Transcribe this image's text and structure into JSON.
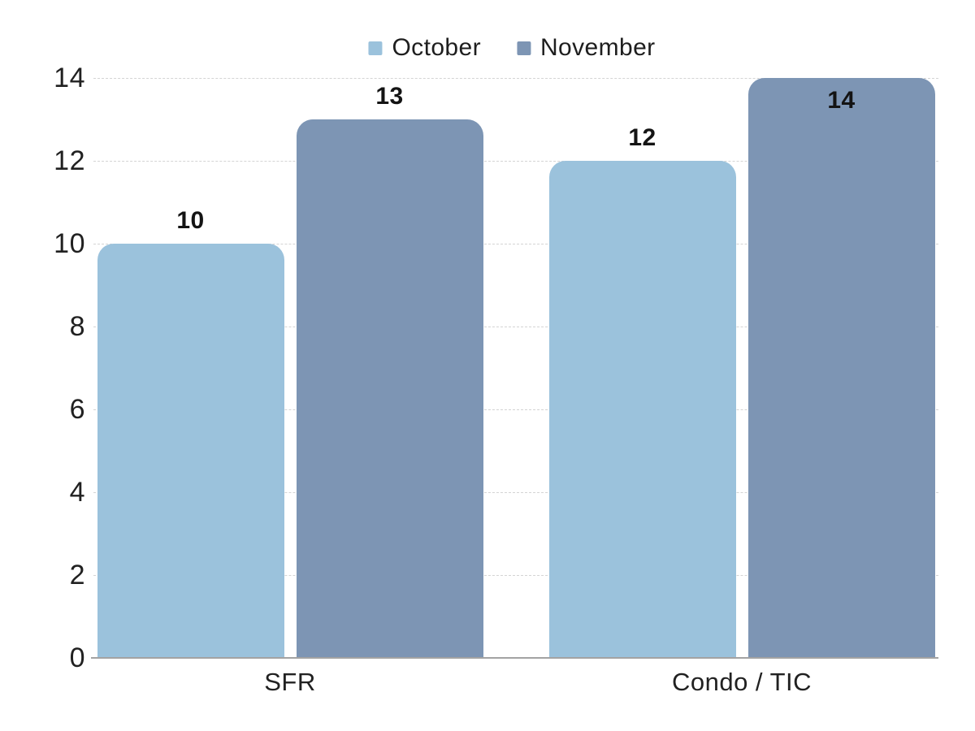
{
  "chart_data": {
    "type": "bar",
    "categories": [
      "SFR",
      "Condo / TIC"
    ],
    "series": [
      {
        "name": "October",
        "values": [
          10,
          12
        ],
        "color": "#9BC2DC"
      },
      {
        "name": "November",
        "values": [
          13,
          14
        ],
        "color": "#7D95B4"
      }
    ],
    "title": "",
    "xlabel": "",
    "ylabel": "",
    "ylim": [
      0,
      14
    ],
    "yticks": [
      0,
      2,
      4,
      6,
      8,
      10,
      12,
      14
    ],
    "grid": true,
    "legend_position": "top-center",
    "value_labels": true
  },
  "colors": {
    "background": "#ffffff",
    "grid_line": "#d4d4d4",
    "axis_line": "#a3a3a3",
    "text": "#1e1e1e"
  }
}
